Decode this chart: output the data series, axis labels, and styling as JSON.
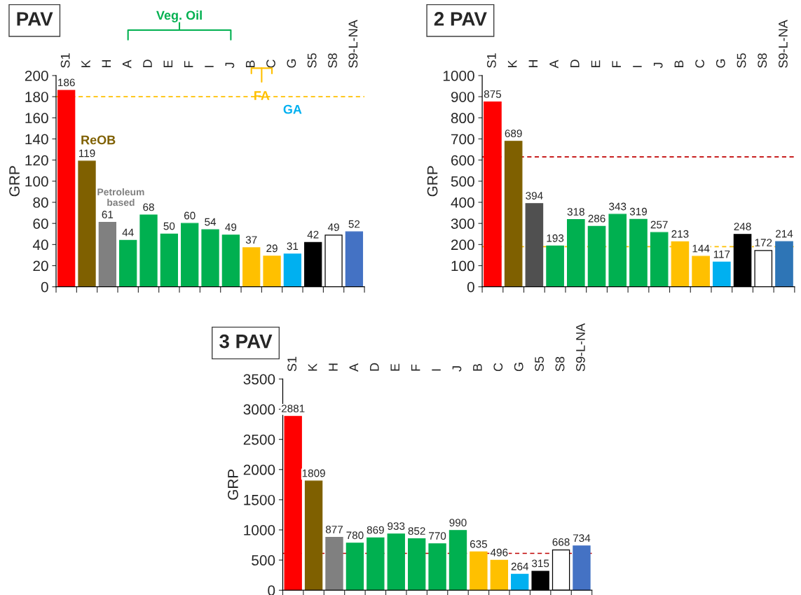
{
  "chart_data": [
    {
      "type": "bar",
      "title": "PAV",
      "ylabel": "GRP",
      "categories": [
        "S1",
        "K",
        "H",
        "A",
        "D",
        "E",
        "F",
        "I",
        "J",
        "B",
        "C",
        "G",
        "S5",
        "S8",
        "S9-L-NA"
      ],
      "values": [
        186,
        119,
        61,
        44,
        68,
        50,
        60,
        54,
        49,
        37,
        29,
        31,
        42,
        49,
        52
      ],
      "colors": [
        "#ff0000",
        "#7f6000",
        "#808080",
        "#00b050",
        "#00b050",
        "#00b050",
        "#00b050",
        "#00b050",
        "#00b050",
        "#ffc000",
        "#ffc000",
        "#00b0f0",
        "#000000",
        "#ffffff",
        "#4472c4"
      ],
      "ylim": [
        0,
        200
      ],
      "yticks": [
        0,
        20,
        40,
        60,
        80,
        100,
        120,
        140,
        160,
        180,
        200
      ],
      "data_labels": true,
      "grid": false,
      "ref_lines": [
        {
          "axis": "y",
          "value": 180,
          "color": "#ffc000",
          "line_style": "dashed"
        }
      ],
      "annotations": [
        "Veg. Oil",
        "FA",
        "GA",
        "ReOB",
        "Petroleum\nbased"
      ]
    },
    {
      "type": "bar",
      "title": "2 PAV",
      "ylabel": "GRP",
      "categories": [
        "S1",
        "K",
        "H",
        "A",
        "D",
        "E",
        "F",
        "I",
        "J",
        "B",
        "C",
        "G",
        "S5",
        "S8",
        "S9-L-NA"
      ],
      "values": [
        875,
        689,
        394,
        193,
        318,
        286,
        343,
        319,
        257,
        213,
        144,
        117,
        248,
        172,
        214
      ],
      "colors": [
        "#ff0000",
        "#7f6000",
        "#505050",
        "#00b050",
        "#00b050",
        "#00b050",
        "#00b050",
        "#00b050",
        "#00b050",
        "#ffc000",
        "#ffc000",
        "#00b0f0",
        "#000000",
        "#ffffff",
        "#2e75b6"
      ],
      "ylim": [
        0,
        1000
      ],
      "yticks": [
        0,
        100,
        200,
        300,
        400,
        500,
        600,
        700,
        800,
        900,
        1000
      ],
      "data_labels": true,
      "grid": false,
      "ref_lines": [
        {
          "axis": "y",
          "value": 615,
          "color": "#c00000",
          "line_style": "dashed"
        },
        {
          "axis": "y",
          "value": 190,
          "color": "#ffc000",
          "line_style": "dashed"
        }
      ]
    },
    {
      "type": "bar",
      "title": "3 PAV",
      "ylabel": "GRP",
      "categories": [
        "S1",
        "K",
        "H",
        "A",
        "D",
        "E",
        "F",
        "I",
        "J",
        "B",
        "C",
        "G",
        "S5",
        "S8",
        "S9-L-NA"
      ],
      "values": [
        2881,
        1809,
        877,
        780,
        869,
        933,
        852,
        770,
        990,
        635,
        496,
        264,
        315,
        668,
        734
      ],
      "colors": [
        "#ff0000",
        "#7f6000",
        "#808080",
        "#00b050",
        "#00b050",
        "#00b050",
        "#00b050",
        "#00b050",
        "#00b050",
        "#ffc000",
        "#ffc000",
        "#00b0f0",
        "#000000",
        "#ffffff",
        "#4472c4"
      ],
      "ylim": [
        0,
        3500
      ],
      "yticks": [
        0,
        500,
        1000,
        1500,
        2000,
        2500,
        3000,
        3500
      ],
      "data_labels": true,
      "grid": false,
      "ref_lines": [
        {
          "axis": "y",
          "value": 610,
          "color": "#c00000",
          "line_style": "dashed"
        }
      ]
    }
  ]
}
